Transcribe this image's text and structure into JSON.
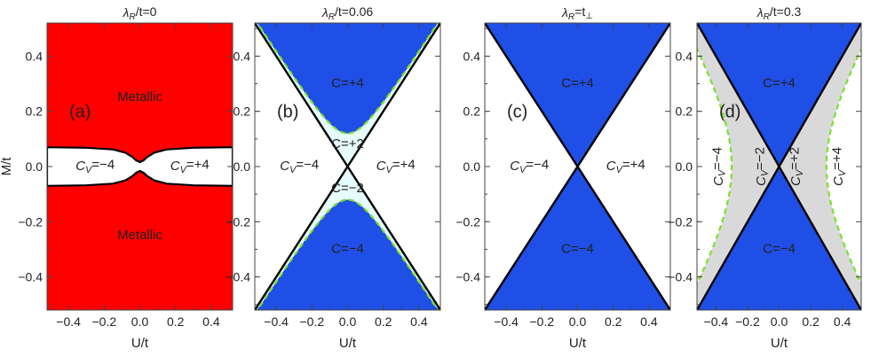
{
  "chart_data": [
    {
      "type": "area",
      "panel": "a",
      "title": "λ_R/t=0",
      "xlabel": "U/t",
      "ylabel": "M/t",
      "xlim": [
        -0.52,
        0.52
      ],
      "ylim": [
        -0.52,
        0.52
      ],
      "xticks": [
        "−0.4",
        "−0.2",
        "0.0",
        "0.2",
        "0.4"
      ],
      "yticks": [
        "0.4",
        "0.2",
        "0.0",
        "−0.2",
        "−0.4"
      ],
      "colors": {
        "metallic": "#ff0000",
        "insulating": "#ffffff"
      },
      "boundary": {
        "description": "white insulating band around M=0; half-width in M vs U",
        "u": [
          -0.52,
          -0.3,
          -0.15,
          -0.08,
          -0.04,
          -0.02,
          0.0,
          0.02,
          0.04,
          0.08,
          0.15,
          0.3,
          0.52
        ],
        "m_half_width": [
          0.07,
          0.068,
          0.062,
          0.05,
          0.034,
          0.022,
          0.016,
          0.022,
          0.034,
          0.05,
          0.062,
          0.068,
          0.07
        ]
      },
      "labels": [
        {
          "text": "Metallic",
          "u": 0.0,
          "m": 0.25
        },
        {
          "text": "Metallic",
          "u": 0.0,
          "m": -0.25
        },
        {
          "text": "C_V=−4",
          "u": -0.25,
          "m": 0.0
        },
        {
          "text": "C_V=+4",
          "u": 0.28,
          "m": 0.0
        }
      ]
    },
    {
      "type": "area",
      "panel": "b",
      "title": "λ_R/t=0.06",
      "xlabel": "U/t",
      "xlim": [
        -0.52,
        0.52
      ],
      "ylim": [
        -0.52,
        0.52
      ],
      "xticks": [
        "−0.4",
        "−0.2",
        "0.0",
        "0.2",
        "0.4"
      ],
      "yticks": [
        "0.4",
        "0.2",
        "0.0",
        "−0.2",
        "−0.4"
      ],
      "colors": {
        "blue": "#1f4fe6",
        "cyan": "#e6fbfb",
        "green_dash": "#7be02c"
      },
      "boundaries": {
        "black_lines": "M = ±U",
        "green_dashed_hyperbola": "M^2 − U^2 = 0.12^2"
      },
      "labels": [
        {
          "text": "C=+4",
          "u": 0.0,
          "m": 0.3
        },
        {
          "text": "C=+2",
          "u": 0.0,
          "m": 0.08
        },
        {
          "text": "C_V=−4",
          "u": -0.27,
          "m": 0.0
        },
        {
          "text": "C_V=+4",
          "u": 0.27,
          "m": 0.0
        },
        {
          "text": "C=−2",
          "u": 0.0,
          "m": -0.08
        },
        {
          "text": "C=−4",
          "u": 0.0,
          "m": -0.3
        }
      ]
    },
    {
      "type": "area",
      "panel": "c",
      "title": "λ_R=t_⊥",
      "xlabel": "U/t",
      "xlim": [
        -0.52,
        0.52
      ],
      "ylim": [
        -0.52,
        0.52
      ],
      "xticks": [
        "−0.4",
        "−0.2",
        "0.0",
        "0.2",
        "0.4"
      ],
      "yticks": [
        "0.4",
        "0.2",
        "0.0",
        "−0.2",
        "−0.4"
      ],
      "colors": {
        "blue": "#1f4fe6"
      },
      "boundaries": {
        "black_lines": "M = ±U"
      },
      "labels": [
        {
          "text": "C=+4",
          "u": 0.0,
          "m": 0.3
        },
        {
          "text": "C_V=−4",
          "u": -0.27,
          "m": 0.0
        },
        {
          "text": "C_V=+4",
          "u": 0.27,
          "m": 0.0
        },
        {
          "text": "C=−4",
          "u": 0.0,
          "m": -0.3
        }
      ]
    },
    {
      "type": "area",
      "panel": "d",
      "title": "λ_R/t=0.3",
      "xlabel": "U/t",
      "xlim": [
        -0.52,
        0.52
      ],
      "ylim": [
        -0.52,
        0.52
      ],
      "xticks": [
        "−0.4",
        "−0.2",
        "0.0",
        "0.2",
        "0.4"
      ],
      "yticks": [
        "0.4",
        "0.2",
        "0.0",
        "−0.2",
        "−0.4"
      ],
      "colors": {
        "blue": "#1f4fe6",
        "gray": "#d9d9d9",
        "green_dash": "#7be02c"
      },
      "boundaries": {
        "black_lines": "M = ±U",
        "green_dashed_hyperbola": "U^2 − M^2 = 0.3^2"
      },
      "labels": [
        {
          "text": "C=+4",
          "u": 0.0,
          "m": 0.3
        },
        {
          "text": "C_V=−4",
          "u": -0.38,
          "m": 0.0,
          "rotated": true
        },
        {
          "text": "C_V=−2",
          "u": -0.11,
          "m": 0.0,
          "rotated": true
        },
        {
          "text": "C_V=+2",
          "u": 0.11,
          "m": 0.0,
          "rotated": true
        },
        {
          "text": "C_V=+4",
          "u": 0.38,
          "m": 0.0,
          "rotated": true
        },
        {
          "text": "C=−4",
          "u": 0.0,
          "m": -0.3
        }
      ]
    }
  ]
}
